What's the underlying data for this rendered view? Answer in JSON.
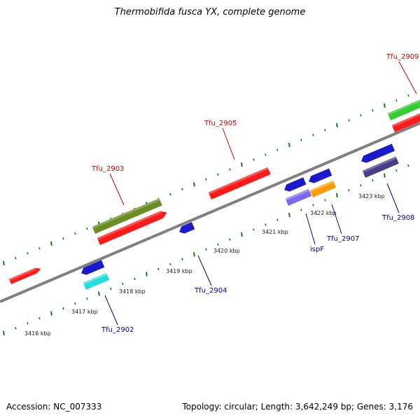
{
  "title": "Thermobifida fusca YX, complete genome",
  "footer": {
    "accession": "Accession: NC_007333",
    "summary": "Topology: circular; Length: 3,642,249 bp; Genes: 3,176"
  },
  "ticks": [
    "3416 kbp",
    "3417 kbp",
    "3418 kbp",
    "3419 kbp",
    "3420 kbp",
    "3421 kbp",
    "3422 kbp",
    "3423 kbp"
  ],
  "gene_labels": [
    {
      "text": "Tfu_2909",
      "color": "#cc0000"
    },
    {
      "text": "Tfu_2905",
      "color": "#cc0000"
    },
    {
      "text": "Tfu_2903",
      "color": "#cc0000"
    },
    {
      "text": "Tfu_2902",
      "color": "#000099"
    },
    {
      "text": "Tfu_2904",
      "color": "#000099"
    },
    {
      "text": "ispF",
      "color": "#000099"
    },
    {
      "text": "Tfu_2907",
      "color": "#000099"
    },
    {
      "text": "Tfu_2908",
      "color": "#000099"
    }
  ],
  "colors": {
    "backbone": "#808080",
    "dots": "#1a7a1a",
    "red": "#ff1a1a",
    "olive": "#6b8e23",
    "green": "#33cc33",
    "blue": "#1a1acc",
    "cyan": "#22dddd",
    "slate": "#7b68ee",
    "orange": "#ff9900",
    "navy": "#4b3d8a"
  }
}
